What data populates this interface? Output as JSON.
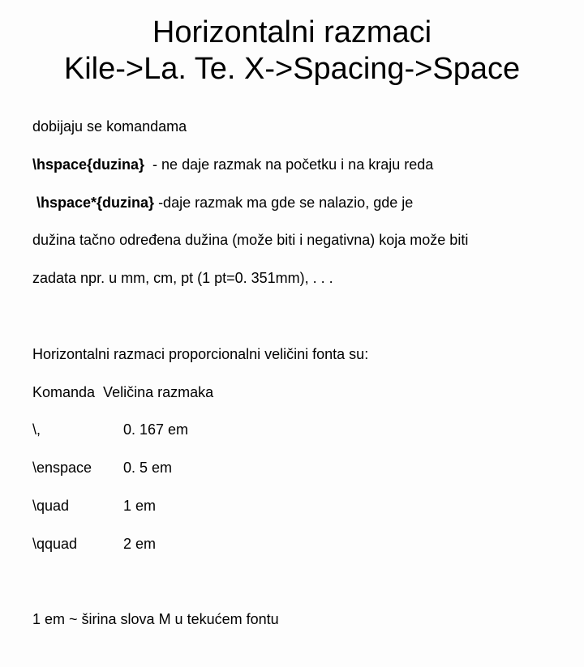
{
  "title_line1": "Horizontalni razmaci",
  "title_line2": "Kile->La. Te. X->Spacing->Space",
  "p1_l1": "dobijaju se komandama",
  "p1_cmd1": "\\hspace{duzina}",
  "p1_cmd1_tail": "  - ne daje razmak na početku i na kraju reda",
  "p1_cmd2": " \\hspace*{duzina}",
  "p1_cmd2_tail": " -daje razmak ma gde se nalazio, gde je",
  "p1_l4": "dužina tačno određena dužina (može biti i negativna) koja može biti",
  "p1_l5": "zadata npr. u mm, cm, pt (1 pt=0. 351mm), . . .",
  "p2_l1": "Horizontalni razmaci proporcionalni veličini fonta su:",
  "p2_header": "Komanda  Veličina razmaka",
  "rows": [
    {
      "cmd": "\\,",
      "val": "0. 167 em"
    },
    {
      "cmd": "\\enspace",
      "val": "0. 5 em"
    },
    {
      "cmd": "\\quad",
      "val": "1 em"
    },
    {
      "cmd": "\\qquad",
      "val": "2 em"
    }
  ],
  "p3": "1 em ~ širina slova M u tekućem fontu"
}
